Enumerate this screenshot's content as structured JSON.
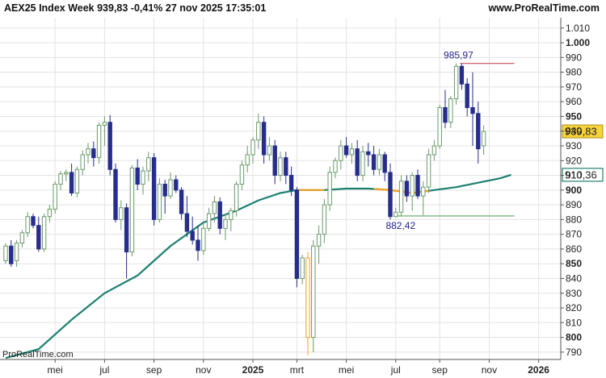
{
  "header": {
    "title": "AEX25 Index Week 939,83 -0,41% 27 nov 2025 17:35:01",
    "site": "www.ProRealTime.com"
  },
  "watermark": "ProRealTime.com",
  "colors": {
    "up": "#ffffff",
    "up_border": "#6a9a6a",
    "down": "#262d8c",
    "ma": "#1b8070",
    "ma_highlight": "#f4a020",
    "last_price_bg": "#f5d43a",
    "ma_label_border": "#1b8070",
    "grid": "#e3e3e3",
    "high_line": "#c8505a",
    "low_line": "#5fa55f",
    "annotation": "#23238c"
  },
  "chart_data": {
    "type": "candlestick",
    "title": "AEX25 Index Week",
    "ylim": [
      785,
      1017
    ],
    "yticks": [
      790,
      800,
      810,
      820,
      830,
      840,
      850,
      860,
      870,
      880,
      890,
      900,
      910,
      920,
      930,
      940,
      950,
      960,
      970,
      980,
      990,
      1000,
      1010
    ],
    "ytick_labels": [
      "790",
      "800",
      "810",
      "820",
      "830",
      "840",
      "850",
      "860",
      "870",
      "880",
      "890",
      "900",
      "910",
      "920",
      "930",
      "940",
      "950",
      "960",
      "970",
      "980",
      "990",
      "1.000",
      "1.010"
    ],
    "ytick_bold": [
      800,
      850,
      900,
      950,
      1000
    ],
    "xticks": [
      {
        "label": "mei",
        "week": 9
      },
      {
        "label": "jul",
        "week": 18
      },
      {
        "label": "sep",
        "week": 27
      },
      {
        "label": "nov",
        "week": 36
      },
      {
        "label": "2025",
        "week": 45,
        "bold": true
      },
      {
        "label": "mrt",
        "week": 53
      },
      {
        "label": "mei",
        "week": 62
      },
      {
        "label": "jul",
        "week": 71
      },
      {
        "label": "sep",
        "week": 79
      },
      {
        "label": "nov",
        "week": 88
      },
      {
        "label": "2026",
        "week": 97,
        "bold": true
      }
    ],
    "candles": [
      [
        852,
        864,
        850,
        862
      ],
      [
        862,
        866,
        848,
        850
      ],
      [
        852,
        866,
        848,
        864
      ],
      [
        864,
        873,
        861,
        871
      ],
      [
        871,
        885,
        868,
        882
      ],
      [
        882,
        884,
        874,
        876
      ],
      [
        876,
        882,
        858,
        860
      ],
      [
        860,
        884,
        858,
        882
      ],
      [
        882,
        890,
        878,
        887
      ],
      [
        887,
        906,
        884,
        904
      ],
      [
        904,
        913,
        900,
        911
      ],
      [
        911,
        914,
        906,
        912
      ],
      [
        912,
        918,
        896,
        898
      ],
      [
        898,
        916,
        895,
        914
      ],
      [
        914,
        927,
        910,
        924
      ],
      [
        924,
        932,
        918,
        928
      ],
      [
        928,
        933,
        916,
        922
      ],
      [
        922,
        946,
        918,
        944
      ],
      [
        944,
        950,
        930,
        946
      ],
      [
        946,
        951,
        910,
        914
      ],
      [
        914,
        918,
        878,
        880
      ],
      [
        880,
        893,
        873,
        888
      ],
      [
        888,
        891,
        840,
        858
      ],
      [
        858,
        917,
        855,
        915
      ],
      [
        915,
        921,
        900,
        904
      ],
      [
        904,
        916,
        897,
        913
      ],
      [
        913,
        926,
        906,
        922
      ],
      [
        922,
        925,
        876,
        880
      ],
      [
        880,
        908,
        878,
        904
      ],
      [
        904,
        907,
        884,
        896
      ],
      [
        896,
        912,
        894,
        907
      ],
      [
        907,
        910,
        898,
        900
      ],
      [
        900,
        902,
        880,
        884
      ],
      [
        884,
        896,
        868,
        872
      ],
      [
        872,
        882,
        863,
        866
      ],
      [
        866,
        876,
        852,
        859
      ],
      [
        859,
        878,
        856,
        874
      ],
      [
        874,
        888,
        872,
        884
      ],
      [
        884,
        896,
        878,
        892
      ],
      [
        892,
        895,
        870,
        874
      ],
      [
        874,
        884,
        866,
        880
      ],
      [
        880,
        888,
        872,
        886
      ],
      [
        886,
        906,
        882,
        904
      ],
      [
        904,
        920,
        900,
        917
      ],
      [
        917,
        930,
        912,
        924
      ],
      [
        924,
        936,
        918,
        934
      ],
      [
        934,
        952,
        928,
        946
      ],
      [
        946,
        950,
        918,
        924
      ],
      [
        924,
        936,
        920,
        930
      ],
      [
        930,
        934,
        904,
        910
      ],
      [
        910,
        926,
        906,
        922
      ],
      [
        922,
        926,
        904,
        910
      ],
      [
        910,
        916,
        896,
        900
      ],
      [
        900,
        902,
        834,
        840
      ],
      [
        840,
        856,
        836,
        854
      ],
      [
        854,
        858,
        788,
        800
      ],
      [
        800,
        866,
        790,
        862
      ],
      [
        862,
        876,
        850,
        870
      ],
      [
        870,
        894,
        864,
        890
      ],
      [
        890,
        916,
        886,
        912
      ],
      [
        912,
        922,
        908,
        920
      ],
      [
        920,
        934,
        914,
        930
      ],
      [
        930,
        936,
        922,
        924
      ],
      [
        924,
        932,
        918,
        928
      ],
      [
        928,
        934,
        906,
        910
      ],
      [
        910,
        930,
        906,
        926
      ],
      [
        926,
        932,
        916,
        924
      ],
      [
        924,
        930,
        910,
        914
      ],
      [
        914,
        928,
        910,
        924
      ],
      [
        924,
        926,
        906,
        912
      ],
      [
        912,
        918,
        880,
        882
      ],
      [
        882,
        888,
        882,
        885
      ],
      [
        885,
        910,
        882,
        906
      ],
      [
        906,
        910,
        892,
        896
      ],
      [
        896,
        912,
        886,
        910
      ],
      [
        910,
        914,
        894,
        896
      ],
      [
        896,
        906,
        883,
        902
      ],
      [
        902,
        928,
        898,
        924
      ],
      [
        924,
        934,
        920,
        930
      ],
      [
        930,
        958,
        928,
        956
      ],
      [
        956,
        968,
        942,
        946
      ],
      [
        946,
        964,
        942,
        962
      ],
      [
        962,
        986,
        958,
        984
      ],
      [
        984,
        986,
        968,
        972
      ],
      [
        972,
        976,
        950,
        956
      ],
      [
        956,
        980,
        930,
        952
      ],
      [
        952,
        960,
        918,
        928
      ],
      [
        930,
        944,
        924,
        939.83
      ]
    ],
    "moving_average": [
      [
        0,
        786
      ],
      [
        6,
        792
      ],
      [
        12,
        812
      ],
      [
        18,
        830
      ],
      [
        24,
        842
      ],
      [
        30,
        862
      ],
      [
        36,
        878
      ],
      [
        42,
        886
      ],
      [
        46,
        893
      ],
      [
        50,
        898
      ],
      [
        53,
        900
      ],
      [
        58,
        900
      ],
      [
        62,
        901
      ],
      [
        66,
        901
      ],
      [
        70,
        900
      ],
      [
        74,
        898
      ],
      [
        78,
        900
      ],
      [
        82,
        902
      ],
      [
        86,
        905
      ],
      [
        90,
        908
      ],
      [
        92,
        910.36
      ]
    ],
    "ma_highlight_segments": [
      [
        53,
        58
      ],
      [
        67,
        77
      ]
    ],
    "last_price": {
      "value": 939.83,
      "label": "939,83"
    },
    "ma_last": {
      "value": 910.36,
      "label": "910,36"
    },
    "high_annotation": {
      "value": 985.97,
      "label": "985,97",
      "week": 83
    },
    "low_annotation": {
      "value": 882.42,
      "label": "882,42",
      "week": 71
    }
  }
}
